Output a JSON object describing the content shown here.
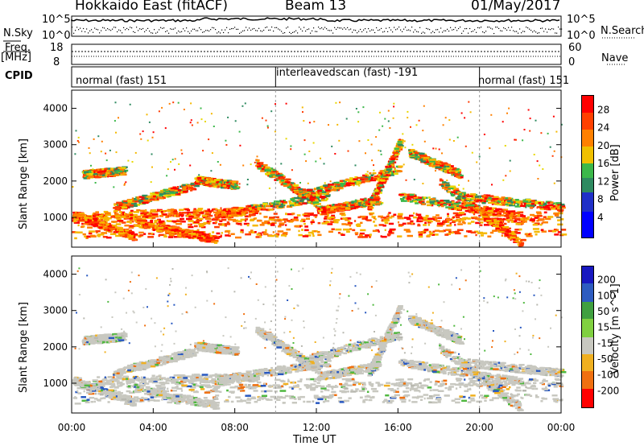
{
  "header": {
    "station": "Hokkaido East (fitACF)",
    "beam": "Beam 13",
    "date": "01/May/2017"
  },
  "left_labels": {
    "nsky": "N.Sky",
    "freq": "Freq.",
    "freq_unit": "[MHz]",
    "cpid": "CPID",
    "nsky_top": "10^5",
    "nsky_bottom": "10^0",
    "freq_top": "18",
    "freq_bottom": "8"
  },
  "right_labels": {
    "nsearch": "N.Search",
    "nsearch_top": "10^5",
    "nsearch_bottom": "10^0",
    "nave": "Nave",
    "nave_top": "60",
    "nave_bottom": "0"
  },
  "cpid_segments": [
    {
      "label": "normal (fast) 151"
    },
    {
      "label": "interleavedscan (fast) -191"
    },
    {
      "label": "normal (fast) 151"
    }
  ],
  "chart_data": [
    {
      "type": "heatmap",
      "name": "power",
      "ylabel": "Slant Range [km]",
      "xlabel": "",
      "x_ticks": [
        "00:00",
        "04:00",
        "08:00",
        "12:00",
        "16:00",
        "20:00",
        "00:00"
      ],
      "y_ticks": [
        "1000",
        "2000",
        "3000",
        "4000"
      ],
      "ylim": [
        180,
        4500
      ],
      "colorbar_label": "Power [dB]",
      "colorbar_ticks": [
        "28",
        "24",
        "20",
        "16",
        "12",
        "8",
        "4"
      ],
      "colors": [
        "#ff0000",
        "#ff3a00",
        "#ff8000",
        "#f5b800",
        "#e8d800",
        "#3cb84a",
        "#2e8a60",
        "#2030c8",
        "#0000ff"
      ]
    },
    {
      "type": "heatmap",
      "name": "velocity",
      "ylabel": "Slant Range [km]",
      "xlabel": "Time UT",
      "x_ticks": [
        "00:00",
        "04:00",
        "08:00",
        "12:00",
        "16:00",
        "20:00",
        "00:00"
      ],
      "y_ticks": [
        "1000",
        "2000",
        "3000",
        "4000"
      ],
      "ylim": [
        180,
        4500
      ],
      "colorbar_label": "Velocity [m s^-1]",
      "colorbar_ticks": [
        "200",
        "100",
        "50",
        "15",
        "-15",
        "-50",
        "-100",
        "-200"
      ],
      "colors": [
        "#1010c0",
        "#2858c0",
        "#50a050",
        "#80d040",
        "#c8c8c0",
        "#f0b020",
        "#f08010",
        "#f04000",
        "#ff0000"
      ]
    }
  ]
}
